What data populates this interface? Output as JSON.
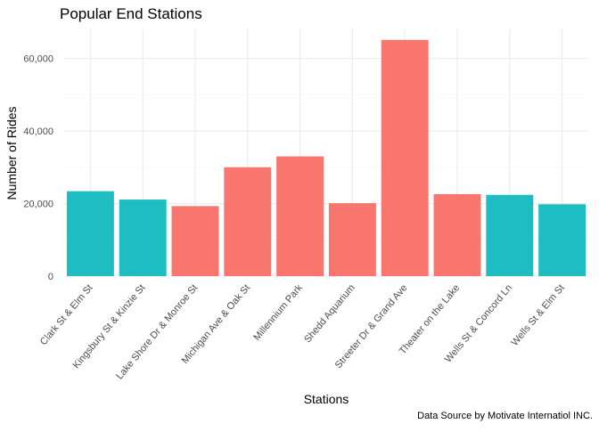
{
  "chart_data": {
    "type": "bar",
    "title": "Popular End Stations",
    "xlabel": "Stations",
    "ylabel": "Number of Rides",
    "caption": "Data Source by Motivate Internatiol INC.",
    "categories": [
      "Clark St & Elm St",
      "Kingsbury St & Kinzie St",
      "Lake Shore Dr & Monroe St",
      "Michigan Ave & Oak St",
      "Millennium Park",
      "Shedd Aquarium",
      "Streeter Dr & Grand Ave",
      "Theater on the Lake",
      "Wells St & Concord Ln",
      "Wells St & Elm St"
    ],
    "values": [
      23400,
      21100,
      19300,
      30000,
      33000,
      20100,
      65100,
      22600,
      22400,
      19800
    ],
    "bar_groups": [
      "teal",
      "teal",
      "red",
      "red",
      "red",
      "red",
      "red",
      "red",
      "teal",
      "teal"
    ],
    "colors": {
      "red": "#F8766D",
      "teal": "#1DBDC2"
    },
    "ylim": [
      0,
      68000
    ],
    "yticks": [
      0,
      20000,
      40000,
      60000
    ],
    "ytick_labels": [
      "0",
      "20,000",
      "40,000",
      "60,000"
    ],
    "grid": true,
    "legend": "none"
  }
}
